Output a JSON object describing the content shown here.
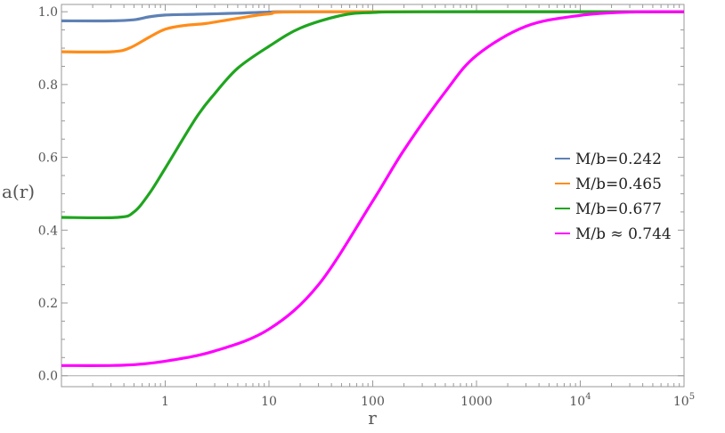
{
  "chart_data": {
    "type": "line",
    "title": "",
    "xlabel": "r",
    "ylabel": "a(r)",
    "xscale": "log",
    "xlim": [
      0.1,
      100000
    ],
    "ylim": [
      -0.03,
      1.02
    ],
    "grid": false,
    "legend_position": "right",
    "x_ticks": [
      {
        "value": 1,
        "label": "1"
      },
      {
        "value": 10,
        "label": "10"
      },
      {
        "value": 100,
        "label": "100"
      },
      {
        "value": 1000,
        "label": "1000"
      },
      {
        "value": 10000,
        "label": "10",
        "sup": "4"
      },
      {
        "value": 100000,
        "label": "10",
        "sup": "5"
      }
    ],
    "y_ticks": [
      {
        "value": 0.0,
        "label": "0.0"
      },
      {
        "value": 0.2,
        "label": "0.2"
      },
      {
        "value": 0.4,
        "label": "0.4"
      },
      {
        "value": 0.6,
        "label": "0.6"
      },
      {
        "value": 0.8,
        "label": "0.8"
      },
      {
        "value": 1.0,
        "label": "1.0"
      }
    ],
    "series": [
      {
        "name": "M/b=0.242",
        "color": "#5e81b5",
        "x": [
          0.1,
          0.3,
          0.5,
          0.7,
          1,
          2,
          5,
          10,
          30,
          100000
        ],
        "y": [
          0.975,
          0.975,
          0.978,
          0.986,
          0.991,
          0.993,
          0.996,
          0.999,
          1.0,
          1.0
        ]
      },
      {
        "name": "M/b=0.465",
        "color": "#ff8c1a",
        "x": [
          0.1,
          0.3,
          0.45,
          0.7,
          1,
          1.5,
          2.5,
          5,
          10,
          30,
          100000
        ],
        "y": [
          0.89,
          0.89,
          0.9,
          0.93,
          0.952,
          0.962,
          0.968,
          0.982,
          0.994,
          1.0,
          1.0
        ]
      },
      {
        "name": "M/b=0.677",
        "color": "#1fa51f",
        "x": [
          0.1,
          0.35,
          0.5,
          0.7,
          1,
          2,
          3,
          5,
          10,
          20,
          50,
          100,
          300,
          100000
        ],
        "y": [
          0.435,
          0.435,
          0.45,
          0.5,
          0.57,
          0.71,
          0.775,
          0.845,
          0.905,
          0.955,
          0.99,
          0.998,
          1.0,
          1.0
        ]
      },
      {
        "name": "M/b ≈ 0.744",
        "color": "#ff00ff",
        "x": [
          0.1,
          0.4,
          1,
          3,
          10,
          30,
          100,
          200,
          500,
          1000,
          3000,
          10000,
          30000,
          100000
        ],
        "y": [
          0.028,
          0.029,
          0.04,
          0.068,
          0.128,
          0.25,
          0.48,
          0.62,
          0.78,
          0.88,
          0.96,
          0.99,
          0.999,
          1.0
        ]
      }
    ]
  }
}
